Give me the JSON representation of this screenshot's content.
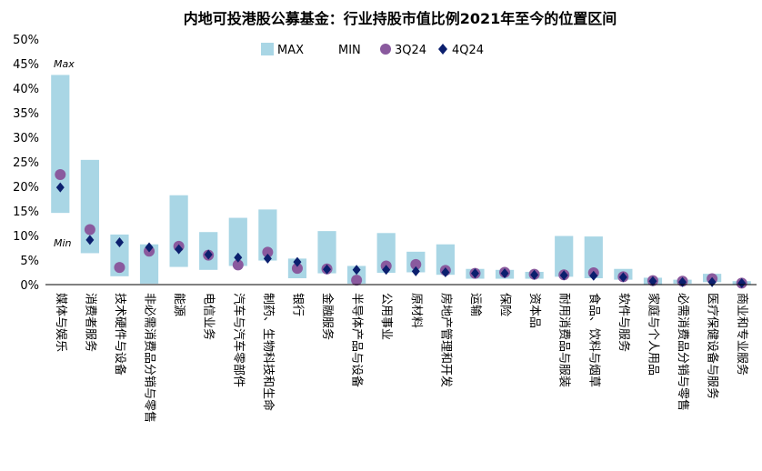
{
  "chart_data": {
    "type": "bar",
    "title": "内地可投港股公募基金：行业持股市值比例2021年至今的位置区间",
    "ylim": [
      0,
      50
    ],
    "y_ticks": [
      "0%",
      "5%",
      "10%",
      "15%",
      "20%",
      "25%",
      "30%",
      "35%",
      "40%",
      "45%",
      "50%"
    ],
    "legend": [
      "MAX",
      "MIN",
      "3Q24",
      "4Q24"
    ],
    "legend_position": "top",
    "annotations": [
      "Max",
      "Min"
    ],
    "colors": {
      "range": "#a9d6e5",
      "q3": "#8a5a9e",
      "q4": "#0b1f6e"
    },
    "categories": [
      "媒体与娱乐",
      "消费者服务",
      "技术硬件与设备",
      "非必需消费品分销与零售",
      "能源",
      "电信业务",
      "汽车与汽车零部件",
      "制药、生物科技和生命",
      "银行",
      "金融服务",
      "半导体产品与设备",
      "公用事业",
      "原材料",
      "房地产管理和开发",
      "运输",
      "保险",
      "资本品",
      "耐用消费品与服装",
      "食品、饮料与烟草",
      "软件与服务",
      "家庭与个人用品",
      "必需消费品分销与零售",
      "医疗保健设备与服务",
      "商业和专业服务"
    ],
    "series": [
      {
        "name": "MAX",
        "values": [
          42.7,
          25.4,
          10.2,
          8.2,
          18.2,
          10.7,
          13.6,
          15.3,
          5.3,
          10.9,
          3.8,
          10.5,
          6.7,
          8.2,
          3.2,
          3.0,
          2.6,
          9.9,
          9.8,
          3.2,
          1.4,
          1.0,
          2.2,
          0.7
        ]
      },
      {
        "name": "MIN",
        "values": [
          14.6,
          6.4,
          1.7,
          0.2,
          3.6,
          3.0,
          3.8,
          4.9,
          1.3,
          2.3,
          0.2,
          2.4,
          2.5,
          2.0,
          1.2,
          1.2,
          1.2,
          1.6,
          1.3,
          1.0,
          0.1,
          0.2,
          0.5,
          0.1
        ]
      },
      {
        "name": "3Q24",
        "values": [
          22.4,
          11.2,
          3.5,
          6.8,
          7.8,
          6.0,
          4.0,
          6.6,
          3.3,
          3.2,
          0.9,
          3.8,
          4.1,
          2.9,
          2.3,
          2.5,
          2.1,
          2.0,
          2.4,
          1.6,
          0.8,
          0.7,
          1.2,
          0.3
        ]
      },
      {
        "name": "4Q24",
        "values": [
          19.8,
          9.1,
          8.6,
          7.6,
          7.2,
          6.1,
          5.5,
          5.3,
          4.6,
          3.1,
          3.0,
          3.0,
          2.7,
          2.5,
          2.3,
          2.3,
          2.0,
          1.9,
          1.8,
          1.5,
          0.7,
          0.5,
          0.5,
          0.3
        ]
      }
    ]
  }
}
